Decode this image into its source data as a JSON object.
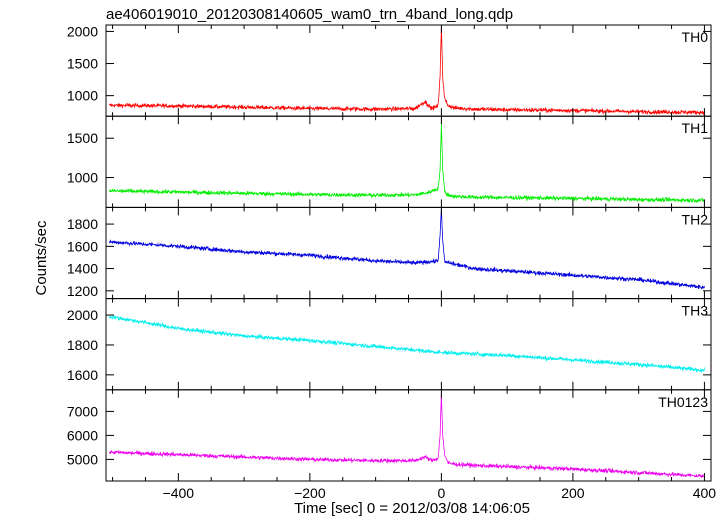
{
  "title": "ae406019010_20120308140605_wam0_trn_4band_long.qdp",
  "chart_data": {
    "type": "line",
    "title": "ae406019010_20120308140605_wam0_trn_4band_long.qdp",
    "xlabel": "Time [sec] 0 = 2012/03/08 14:06:05",
    "ylabel": "Counts/sec",
    "xlim": [
      -510,
      410
    ],
    "x_ticks": [
      -400,
      -200,
      0,
      200,
      400
    ],
    "x_tick_labels": [
      "−400",
      "−200",
      "0",
      "200",
      "400"
    ],
    "grid": false,
    "panels": [
      {
        "name": "TH0",
        "color": "#ff0000",
        "ylim": [
          680,
          2100
        ],
        "y_ticks": [
          1000,
          1500,
          2000
        ],
        "y_tick_labels": [
          "1000",
          "1500",
          "2000"
        ],
        "series": {
          "x": [
            -505,
            -400,
            -300,
            -200,
            -100,
            -40,
            -25,
            -15,
            -5,
            -2,
            0,
            2,
            5,
            10,
            20,
            50,
            100,
            200,
            300,
            400
          ],
          "y": [
            850,
            840,
            820,
            800,
            790,
            800,
            910,
            800,
            840,
            1300,
            2100,
            1300,
            950,
            850,
            810,
            790,
            780,
            770,
            750,
            740
          ]
        }
      },
      {
        "name": "TH1",
        "color": "#00ee00",
        "ylim": [
          620,
          1780
        ],
        "y_ticks": [
          1000,
          1500
        ],
        "y_tick_labels": [
          "1000",
          "1500"
        ],
        "series": {
          "x": [
            -505,
            -400,
            -300,
            -200,
            -100,
            -40,
            -20,
            -5,
            -2,
            0,
            2,
            5,
            10,
            20,
            50,
            100,
            200,
            300,
            400
          ],
          "y": [
            830,
            815,
            800,
            785,
            775,
            780,
            810,
            860,
            1100,
            1700,
            1100,
            820,
            780,
            760,
            750,
            745,
            735,
            720,
            710
          ]
        }
      },
      {
        "name": "TH2",
        "color": "#0000dd",
        "ylim": [
          1130,
          1950
        ],
        "y_ticks": [
          1200,
          1400,
          1600,
          1800
        ],
        "y_tick_labels": [
          "1200",
          "1400",
          "1600",
          "1800"
        ],
        "series": {
          "x": [
            -505,
            -400,
            -300,
            -200,
            -100,
            -40,
            -5,
            -2,
            0,
            2,
            5,
            50,
            100,
            200,
            300,
            400
          ],
          "y": [
            1640,
            1600,
            1550,
            1520,
            1470,
            1450,
            1470,
            1700,
            1950,
            1650,
            1460,
            1400,
            1380,
            1340,
            1300,
            1230
          ]
        }
      },
      {
        "name": "TH3",
        "color": "#00eeee",
        "ylim": [
          1500,
          2110
        ],
        "y_ticks": [
          1600,
          1800,
          2000
        ],
        "y_tick_labels": [
          "1600",
          "1800",
          "2000"
        ],
        "series": {
          "x": [
            -505,
            -450,
            -400,
            -300,
            -200,
            -100,
            0,
            100,
            200,
            300,
            400
          ],
          "y": [
            1990,
            1950,
            1910,
            1860,
            1830,
            1790,
            1750,
            1730,
            1700,
            1670,
            1630
          ]
        }
      },
      {
        "name": "TH0123",
        "color": "#ee00ee",
        "ylim": [
          4100,
          7900
        ],
        "y_ticks": [
          5000,
          6000,
          7000
        ],
        "y_tick_labels": [
          "5000",
          "6000",
          "7000"
        ],
        "series": {
          "x": [
            -505,
            -400,
            -300,
            -200,
            -100,
            -40,
            -25,
            -15,
            -5,
            -2,
            0,
            2,
            5,
            10,
            20,
            50,
            100,
            200,
            300,
            400
          ],
          "y": [
            5300,
            5200,
            5100,
            5000,
            4950,
            4950,
            5100,
            4950,
            5050,
            6000,
            7800,
            6000,
            5200,
            4850,
            4800,
            4750,
            4700,
            4600,
            4450,
            4300
          ]
        }
      }
    ]
  }
}
